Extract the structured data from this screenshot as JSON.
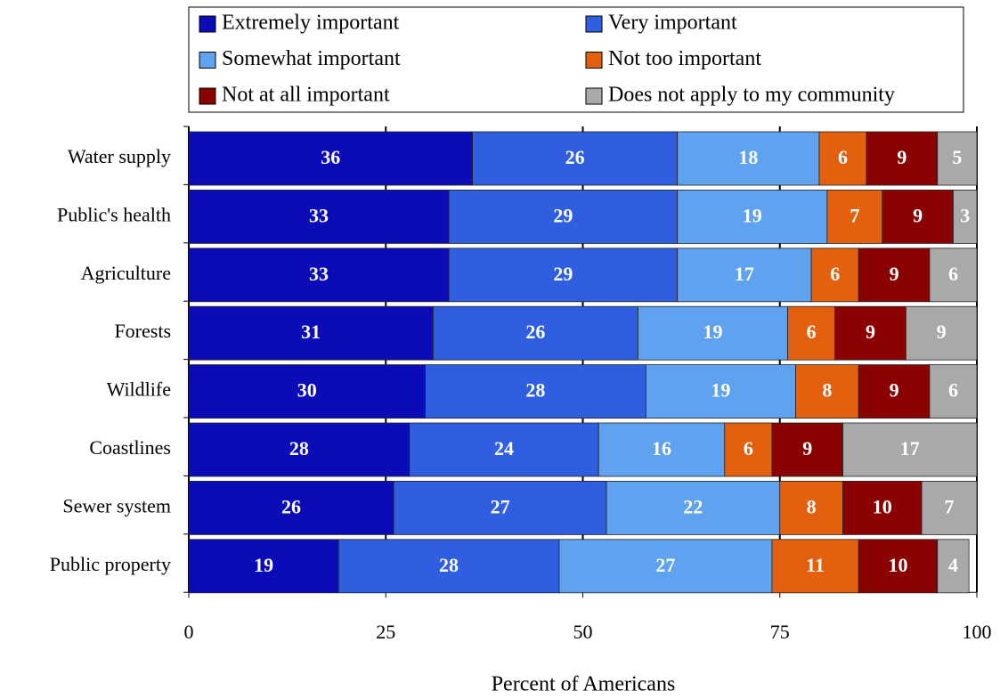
{
  "chart_data": {
    "type": "stacked-barh",
    "categories": [
      "Water supply",
      "Public's health",
      "Agriculture",
      "Forests",
      "Wildlife",
      "Coastlines",
      "Sewer system",
      "Public property"
    ],
    "series": [
      {
        "name": "Extremely important",
        "color": "#0b0bb8",
        "values": [
          36,
          33,
          33,
          31,
          30,
          28,
          26,
          19
        ]
      },
      {
        "name": "Very important",
        "color": "#2f5fe0",
        "values": [
          26,
          29,
          29,
          26,
          28,
          24,
          27,
          28
        ]
      },
      {
        "name": "Somewhat important",
        "color": "#5ea2f0",
        "values": [
          18,
          19,
          17,
          19,
          19,
          16,
          22,
          27
        ]
      },
      {
        "name": "Not too important",
        "color": "#e3600f",
        "values": [
          6,
          7,
          6,
          6,
          8,
          6,
          8,
          11
        ]
      },
      {
        "name": "Not at all important",
        "color": "#8a0202",
        "values": [
          9,
          9,
          9,
          9,
          9,
          9,
          10,
          10
        ]
      },
      {
        "name": "Does not apply to my community",
        "color": "#a9a9a9",
        "values": [
          5,
          3,
          6,
          9,
          6,
          17,
          7,
          4
        ]
      }
    ],
    "xlabel": "Percent of Americans",
    "xlim": [
      0,
      100
    ],
    "xticks": [
      0,
      25,
      50,
      75,
      100
    ],
    "grid": true,
    "legend": "top"
  }
}
